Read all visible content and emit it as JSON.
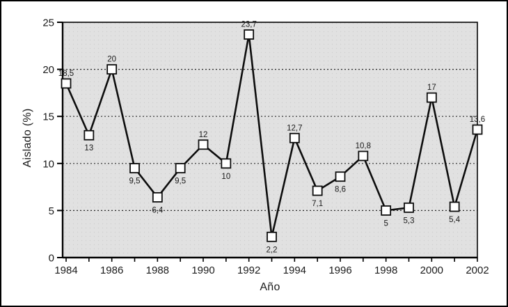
{
  "chart_data": {
    "type": "line",
    "title": "",
    "xlabel": "Año",
    "ylabel": "Aislado (%)",
    "x": [
      1984,
      1985,
      1986,
      1987,
      1988,
      1989,
      1990,
      1991,
      1992,
      1993,
      1994,
      1995,
      1996,
      1997,
      1998,
      1999,
      2000,
      2001,
      2002
    ],
    "values": [
      18.5,
      13,
      20,
      9.5,
      6.4,
      9.5,
      12,
      10,
      23.7,
      2.2,
      12.7,
      7.1,
      8.6,
      10.8,
      5,
      5.3,
      17,
      5.4,
      13.6
    ],
    "point_labels": [
      "18,5",
      "13",
      "20",
      "9,5",
      "6,4",
      "9,5",
      "12",
      "10",
      "23,7",
      "2,2",
      "12,7",
      "7,1",
      "8,6",
      "10,8",
      "5",
      "5,3",
      "17",
      "5,4",
      "13,6"
    ],
    "label_positions": [
      "above",
      "below",
      "above",
      "below",
      "below",
      "below",
      "above",
      "below",
      "above",
      "below",
      "above",
      "below",
      "below",
      "above",
      "below",
      "below",
      "above",
      "below",
      "above"
    ],
    "ylim": [
      0,
      25
    ],
    "yticks": [
      0,
      5,
      10,
      15,
      20,
      25
    ],
    "xtick_labels": [
      1984,
      1986,
      1988,
      1990,
      1992,
      1994,
      1996,
      1998,
      2000,
      2002
    ],
    "gridlines": [
      5,
      10,
      15,
      20
    ],
    "grid_style": "dashed",
    "legend_position": "none",
    "marker": "square",
    "colors": {
      "line": "#0d0d0d",
      "marker_fill": "#ffffff",
      "marker_stroke": "#0d0d0d",
      "plot_bg": "#e1e1e1",
      "plot_bg_dot": "#cfcfcf",
      "grid": "#2a2a2a",
      "axis": "#000000",
      "text": "#1a1a1a"
    }
  }
}
